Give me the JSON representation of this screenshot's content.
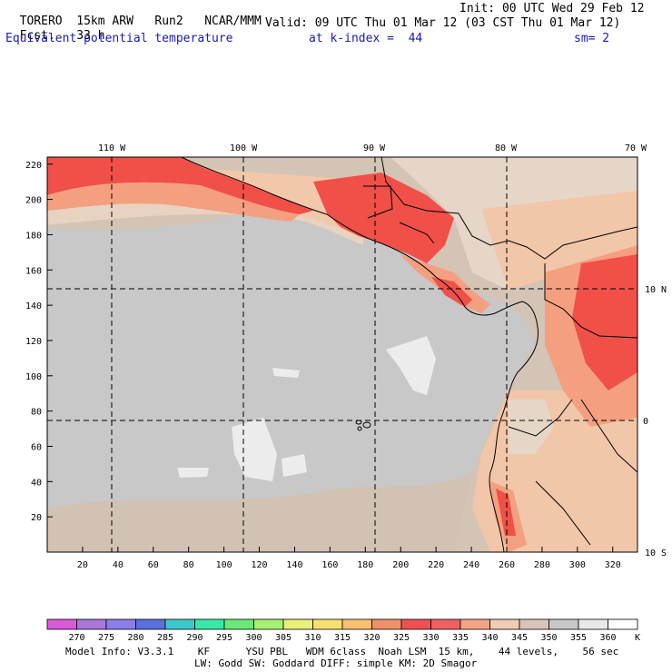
{
  "header": {
    "model": "TORERO",
    "resolution": "15km ARW",
    "run": "Run2",
    "org": "NCAR/MMM",
    "init": "Init: 00 UTC Wed 29 Feb 12",
    "fcst_label": "Fcst.",
    "fcst_value": "33 h",
    "valid": "Valid: 09 UTC Thu 01 Mar 12 (03 CST Thu 01 Mar 12)",
    "field": "Equivalent potential temperature",
    "kindex": "at k-index =  44",
    "sm": "sm= 2"
  },
  "top_lon_labels": [
    "110 W",
    "100 W",
    "90 W",
    "80 W",
    "70 W"
  ],
  "right_lat_labels": [
    "10 N",
    "0",
    "10 S"
  ],
  "left_y_ticks": [
    "20",
    "40",
    "60",
    "80",
    "100",
    "120",
    "140",
    "160",
    "180",
    "200",
    "220"
  ],
  "bottom_x_ticks": [
    "20",
    "40",
    "60",
    "80",
    "100",
    "120",
    "140",
    "160",
    "180",
    "200",
    "220",
    "240",
    "260",
    "280",
    "300",
    "320"
  ],
  "colorbar": {
    "unit": "K",
    "labels": [
      "270",
      "275",
      "280",
      "285",
      "290",
      "295",
      "300",
      "305",
      "310",
      "315",
      "320",
      "325",
      "330",
      "335",
      "340",
      "345",
      "350",
      "355",
      "360"
    ],
    "colors": [
      "#d85ad8",
      "#a877d8",
      "#8a7ee8",
      "#5a6edc",
      "#3cc8c8",
      "#38e8a8",
      "#6ae878",
      "#a8f070",
      "#e8f07a",
      "#f8e070",
      "#f8c070",
      "#f0906a",
      "#f05050",
      "#f06060",
      "#f4a486",
      "#f0ccb4",
      "#d8c4b8",
      "#c8c8c8",
      "#e8e8e8",
      "#ffffff"
    ]
  },
  "footer": {
    "line1": "Model Info: V3.3.1    KF      YSU PBL   WDM 6class  Noah LSM  15 km,    44 levels,    56 sec",
    "line2": "LW: Godd SW: Goddard DIFF: simple KM: 2D Smagor"
  },
  "map_colors": {
    "background": "#d4c4b6",
    "ocean_cool": "#c8c8c8",
    "white_patch": "#ececec",
    "warm_light": "#f2c6a8",
    "warm_mid": "#f4a080",
    "warm_hot": "#f05048"
  }
}
